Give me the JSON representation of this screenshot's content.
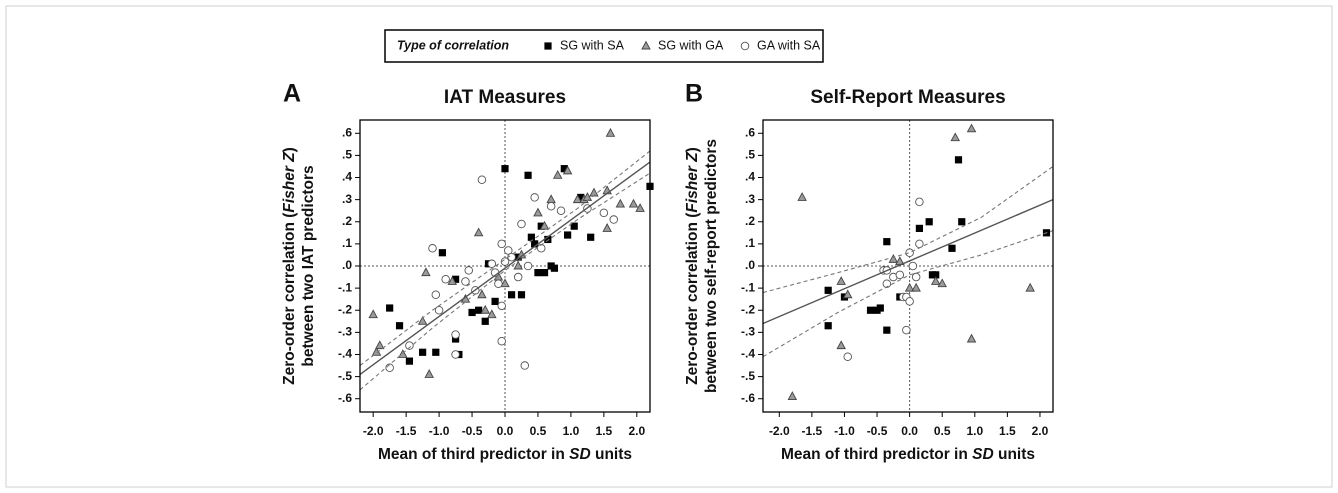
{
  "chart_data": [
    {
      "type": "scatter",
      "panel_label": "A",
      "title": "IAT Measures",
      "legend_title": "Type of correlation",
      "y_label": {
        "line1": [
          "Zero-order correlation (",
          "Fisher Z",
          ")"
        ],
        "line2": "between two IAT predictors"
      },
      "x_label": [
        "Mean of third predictor in ",
        "SD",
        " units"
      ],
      "xlim": [
        -2.2,
        2.2
      ],
      "ylim": [
        -0.66,
        0.66
      ],
      "xticks": [
        {
          "value": -2,
          "label": "-2.0"
        },
        -1.5,
        {
          "value": -1,
          "label": "-1.0"
        },
        -0.5,
        {
          "value": 0,
          "label": "0.0"
        },
        0.5,
        {
          "value": 1,
          "label": "1.0"
        },
        1.5,
        {
          "value": 2,
          "label": "2.0"
        }
      ],
      "yticks": [
        {
          "value": 0.6,
          "label": ".6"
        },
        {
          "value": 0.5,
          "label": ".5"
        },
        {
          "value": 0.4,
          "label": ".4"
        },
        {
          "value": 0.3,
          "label": ".3"
        },
        {
          "value": 0.2,
          "label": ".2"
        },
        {
          "value": 0.1,
          "label": ".1"
        },
        {
          "value": 0,
          "label": ".0"
        },
        {
          "value": -0.1,
          "label": "-.1"
        },
        {
          "value": -0.2,
          "label": "-.2"
        },
        {
          "value": -0.3,
          "label": "-.3"
        },
        {
          "value": -0.4,
          "label": "-.4"
        },
        {
          "value": -0.5,
          "label": "-.5"
        },
        {
          "value": -0.6,
          "label": "-.6"
        }
      ],
      "reference_x": 0,
      "reference_y": 0,
      "fit": {
        "x": [
          -2.2,
          2.2
        ],
        "y": [
          -0.49,
          0.47
        ]
      },
      "confidence_band": {
        "x": [
          -2.2,
          -1.1,
          0,
          1.1,
          2.2
        ],
        "upper": [
          -0.45,
          -0.2,
          0.03,
          0.26,
          0.52
        ],
        "lower": [
          -0.56,
          -0.28,
          -0.02,
          0.21,
          0.42
        ]
      },
      "series": [
        {
          "name": "SG with SA",
          "marker": "square",
          "color": "#000000",
          "edge_color": "#000000",
          "x": [
            -1.75,
            -1.6,
            -1.45,
            -1.25,
            -1.05,
            -0.95,
            -0.75,
            -0.75,
            -0.7,
            -0.5,
            -0.4,
            -0.3,
            -0.25,
            -0.15,
            0.0,
            0.1,
            0.2,
            0.25,
            0.35,
            0.4,
            0.45,
            0.5,
            0.55,
            0.6,
            0.65,
            0.7,
            0.75,
            0.9,
            0.95,
            1.05,
            1.3,
            1.15,
            2.2
          ],
          "values": [
            -0.19,
            -0.27,
            -0.43,
            -0.39,
            -0.39,
            0.06,
            -0.06,
            -0.33,
            -0.4,
            -0.21,
            -0.2,
            -0.25,
            0.01,
            -0.16,
            0.44,
            -0.13,
            0.04,
            -0.13,
            0.41,
            0.13,
            0.1,
            -0.03,
            0.18,
            -0.03,
            0.12,
            0.0,
            -0.01,
            0.44,
            0.14,
            0.18,
            0.13,
            0.31,
            0.36
          ]
        },
        {
          "name": "SG with GA",
          "marker": "triangle",
          "color": "#9a9a9a",
          "edge_color": "#444444",
          "x": [
            -2.0,
            -1.95,
            -1.9,
            -1.55,
            -1.15,
            -1.25,
            -1.2,
            -0.8,
            -0.6,
            -0.4,
            -0.35,
            -0.3,
            -0.2,
            -0.1,
            0.0,
            0.2,
            0.25,
            0.5,
            0.6,
            0.7,
            0.8,
            0.95,
            1.1,
            1.2,
            1.25,
            1.35,
            1.55,
            1.6,
            1.55,
            1.75,
            1.95,
            2.05
          ],
          "values": [
            -0.22,
            -0.39,
            -0.36,
            -0.4,
            -0.49,
            -0.25,
            -0.03,
            -0.07,
            -0.15,
            0.15,
            -0.13,
            -0.2,
            -0.22,
            -0.05,
            -0.08,
            0.0,
            0.05,
            0.24,
            0.18,
            0.3,
            0.41,
            0.43,
            0.3,
            0.3,
            0.31,
            0.33,
            0.34,
            0.6,
            0.17,
            0.28,
            0.28,
            0.26
          ]
        },
        {
          "name": "GA with SA",
          "marker": "circle",
          "color": "#ffffff",
          "edge_color": "#555555",
          "x": [
            -1.75,
            -1.45,
            -1.1,
            -1.05,
            -1.0,
            -0.9,
            -0.75,
            -0.6,
            -0.55,
            -0.45,
            -0.35,
            -0.2,
            -0.15,
            -0.1,
            -0.05,
            0.0,
            0.05,
            0.1,
            -0.05,
            0.2,
            0.25,
            0.3,
            0.35,
            0.45,
            0.55,
            0.7,
            0.85,
            1.25,
            1.5,
            1.65,
            -0.05,
            -0.75
          ],
          "values": [
            -0.46,
            -0.36,
            0.08,
            -0.13,
            -0.2,
            -0.06,
            -0.31,
            -0.07,
            -0.02,
            -0.11,
            0.39,
            0.01,
            -0.03,
            -0.08,
            -0.18,
            0.02,
            0.07,
            0.04,
            0.1,
            -0.05,
            0.19,
            -0.45,
            0.0,
            0.31,
            0.08,
            0.27,
            0.25,
            0.26,
            0.24,
            0.21,
            -0.34,
            -0.4
          ]
        }
      ]
    },
    {
      "type": "scatter",
      "panel_label": "B",
      "title": "Self-Report Measures",
      "y_label": {
        "line1": [
          "Zero-order correlation (",
          "Fisher Z",
          ")"
        ],
        "line2": "between two self-report predictors"
      },
      "x_label": [
        "Mean of third predictor in ",
        "SD",
        " units"
      ],
      "xlim": [
        -2.25,
        2.2
      ],
      "ylim": [
        -0.66,
        0.66
      ],
      "xticks": [
        {
          "value": -2,
          "label": "-2.0"
        },
        -1.5,
        {
          "value": -1,
          "label": "-1.0"
        },
        -0.5,
        {
          "value": 0,
          "label": "0.0"
        },
        0.5,
        {
          "value": 1,
          "label": "1.0"
        },
        1.5,
        {
          "value": 2,
          "label": "2.0"
        }
      ],
      "yticks": [
        {
          "value": 0.6,
          "label": ".6"
        },
        {
          "value": 0.5,
          "label": ".5"
        },
        {
          "value": 0.4,
          "label": ".4"
        },
        {
          "value": 0.3,
          "label": ".3"
        },
        {
          "value": 0.2,
          "label": ".2"
        },
        {
          "value": 0.1,
          "label": ".1"
        },
        {
          "value": 0,
          "label": ".0"
        },
        {
          "value": -0.1,
          "label": "-.1"
        },
        {
          "value": -0.2,
          "label": "-.2"
        },
        {
          "value": -0.3,
          "label": "-.3"
        },
        {
          "value": -0.4,
          "label": "-.4"
        },
        {
          "value": -0.5,
          "label": "-.5"
        },
        {
          "value": -0.6,
          "label": "-.6"
        }
      ],
      "reference_x": 0,
      "reference_y": 0,
      "fit": {
        "x": [
          -2.25,
          2.2
        ],
        "y": [
          -0.26,
          0.3
        ]
      },
      "confidence_band": {
        "x": [
          -2.25,
          -1.1,
          0,
          1.1,
          2.2
        ],
        "upper": [
          -0.12,
          -0.03,
          0.06,
          0.22,
          0.45
        ],
        "lower": [
          -0.41,
          -0.21,
          -0.04,
          0.05,
          0.16
        ]
      },
      "series": [
        {
          "name": "SG with SA",
          "marker": "square",
          "color": "#000000",
          "edge_color": "#000000",
          "x": [
            -1.25,
            -1.25,
            -1.0,
            -0.6,
            -0.5,
            -0.45,
            -0.35,
            -0.35,
            -0.15,
            0.15,
            0.3,
            0.35,
            0.4,
            0.65,
            0.75,
            0.8,
            2.1
          ],
          "values": [
            -0.11,
            -0.27,
            -0.14,
            -0.2,
            -0.2,
            -0.19,
            0.11,
            -0.29,
            -0.14,
            0.17,
            0.2,
            -0.04,
            -0.04,
            0.08,
            0.48,
            0.2,
            0.15
          ]
        },
        {
          "name": "SG with GA",
          "marker": "triangle",
          "color": "#9a9a9a",
          "edge_color": "#444444",
          "x": [
            -1.8,
            -1.65,
            -1.05,
            -1.05,
            -0.95,
            -0.25,
            -0.15,
            0.0,
            0.1,
            0.4,
            0.5,
            0.7,
            0.95,
            0.95,
            1.85
          ],
          "values": [
            -0.59,
            0.31,
            -0.36,
            -0.07,
            -0.13,
            0.03,
            0.02,
            -0.1,
            -0.1,
            -0.07,
            -0.08,
            0.58,
            0.62,
            -0.33,
            -0.1
          ]
        },
        {
          "name": "GA with SA",
          "marker": "circle",
          "color": "#ffffff",
          "edge_color": "#555555",
          "x": [
            -0.95,
            -0.4,
            -0.35,
            -0.25,
            -0.15,
            -0.1,
            -0.05,
            0.0,
            0.0,
            -0.05,
            0.1,
            0.15,
            0.15,
            0.05,
            -0.35
          ],
          "values": [
            -0.41,
            -0.02,
            -0.08,
            -0.05,
            -0.04,
            -0.14,
            -0.14,
            0.06,
            -0.16,
            -0.29,
            -0.05,
            0.29,
            0.1,
            0.0,
            -0.02
          ]
        }
      ]
    }
  ]
}
